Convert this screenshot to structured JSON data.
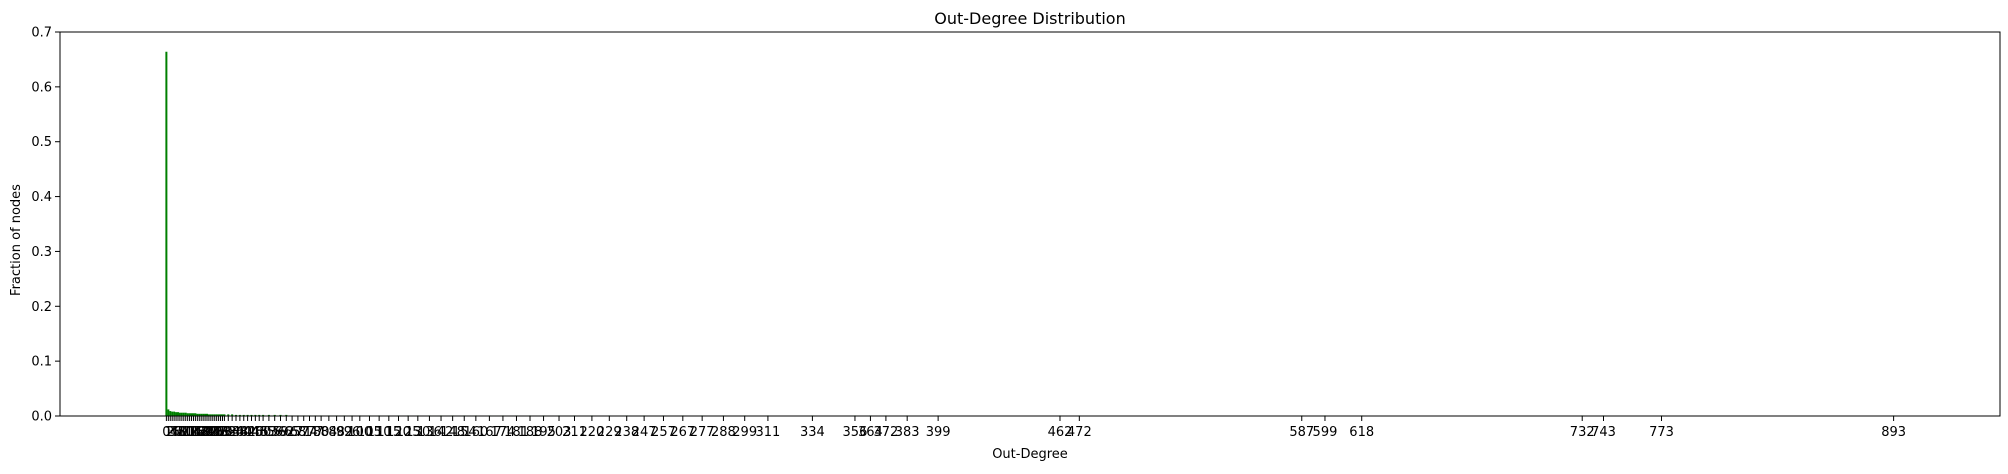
{
  "chart_data": {
    "type": "bar",
    "title": "Out-Degree Distribution",
    "xlabel": "Out-Degree",
    "ylabel": "Fraction of nodes",
    "xlim": [
      -55,
      948
    ],
    "ylim": [
      0,
      0.7
    ],
    "yticks": [
      0.0,
      0.1,
      0.2,
      0.3,
      0.4,
      0.5,
      0.6,
      0.7
    ],
    "ytick_labels": [
      "0.0",
      "0.1",
      "0.2",
      "0.3",
      "0.4",
      "0.5",
      "0.6",
      "0.7"
    ],
    "bar_color": "#008000",
    "grid": false,
    "x": [
      0,
      1,
      2,
      3,
      4,
      5,
      6,
      7,
      8,
      9,
      10,
      11,
      12,
      13,
      14,
      15,
      16,
      17,
      18,
      19,
      20,
      21,
      22,
      23,
      24,
      25,
      26,
      27,
      28,
      29,
      30,
      32,
      34,
      36,
      38,
      40,
      42,
      44,
      46,
      48,
      50,
      53,
      56,
      59,
      62,
      65,
      68,
      71,
      74,
      77,
      80,
      84,
      88,
      92,
      96,
      100,
      105,
      110,
      115,
      120,
      125,
      130,
      136,
      142,
      148,
      154,
      160,
      167,
      174,
      181,
      188,
      195,
      203,
      211,
      220,
      229,
      238,
      247,
      257,
      267,
      277,
      288,
      299,
      311,
      334,
      356,
      364,
      372,
      383,
      399,
      462,
      472,
      587,
      599,
      618,
      732,
      743,
      773,
      893
    ],
    "values": [
      0.664,
      0.012,
      0.009,
      0.008,
      0.008,
      0.007,
      0.007,
      0.006,
      0.006,
      0.006,
      0.006,
      0.005,
      0.005,
      0.005,
      0.005,
      0.005,
      0.004,
      0.004,
      0.004,
      0.004,
      0.004,
      0.004,
      0.003,
      0.003,
      0.003,
      0.003,
      0.003,
      0.003,
      0.003,
      0.003,
      0.003,
      0.003,
      0.003,
      0.002,
      0.002,
      0.002,
      0.002,
      0.002,
      0.002,
      0.002,
      0.002,
      0.002,
      0.002,
      0.002,
      0.002,
      0.001,
      0.001,
      0.001,
      0.001,
      0.001,
      0.001,
      0.001,
      0.001,
      0.001,
      0.001,
      0.001,
      0.001,
      0.001,
      0.001,
      0.001,
      0.001,
      0.001,
      0.001,
      0.001,
      0.001,
      0.001,
      0.001,
      0.001,
      0.001,
      0.001,
      0.001,
      0.001,
      0.001,
      0.001,
      0.001,
      0.001,
      0.001,
      0.001,
      0.001,
      0.001,
      0.001,
      0.001,
      0.001,
      0.001,
      0.001,
      0.001,
      0.001,
      0.001,
      0.001,
      0.001,
      0.001,
      0.001,
      0.001,
      0.001,
      0.001,
      0.001,
      0.001,
      0.001,
      0.001
    ],
    "xticks": [
      0,
      1,
      2,
      3,
      4,
      5,
      6,
      7,
      8,
      9,
      10,
      11,
      12,
      13,
      14,
      15,
      16,
      17,
      18,
      19,
      20,
      21,
      22,
      23,
      24,
      25,
      26,
      27,
      28,
      29,
      30,
      32,
      34,
      36,
      38,
      40,
      42,
      44,
      46,
      48,
      50,
      53,
      56,
      59,
      62,
      65,
      68,
      71,
      74,
      77,
      80,
      84,
      88,
      92,
      96,
      100,
      105,
      110,
      115,
      120,
      125,
      130,
      136,
      142,
      148,
      154,
      160,
      167,
      174,
      181,
      188,
      195,
      203,
      211,
      220,
      229,
      238,
      247,
      257,
      267,
      277,
      288,
      299,
      311,
      334,
      356,
      364,
      372,
      383,
      399,
      462,
      472,
      587,
      599,
      618,
      732,
      743,
      773,
      893
    ]
  }
}
